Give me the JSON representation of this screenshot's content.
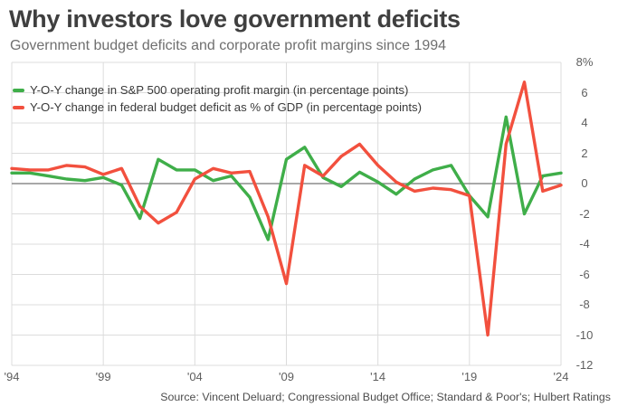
{
  "header": {
    "title": "Why investors love government deficits",
    "subtitle": "Government budget deficits and corporate profit margins since 1994"
  },
  "source": "Source: Vincent Deluard; Congressional Budget Office; Standard & Poor's; Hulbert Ratings",
  "colors": {
    "green_series": "#3fae49",
    "red_series": "#f2503e",
    "grid": "#dcdcdc",
    "zero_line": "#8c8c8c",
    "title_text": "#3f3f3f",
    "subtitle_text": "#6f6f6f",
    "tick_text": "#5f5f5f"
  },
  "chart_data": {
    "type": "line",
    "title": "Why investors love government deficits",
    "subtitle": "Government budget deficits and corporate profit margins since 1994",
    "xlabel": "",
    "ylabel": "",
    "x": [
      1994,
      1995,
      1996,
      1997,
      1998,
      1999,
      2000,
      2001,
      2002,
      2003,
      2004,
      2005,
      2006,
      2007,
      2008,
      2009,
      2010,
      2011,
      2012,
      2013,
      2014,
      2015,
      2016,
      2017,
      2018,
      2019,
      2020,
      2021,
      2022,
      2023,
      2024
    ],
    "series": [
      {
        "name": "Y-O-Y change in S&P 500 operating profit margin (in percentage points)",
        "color": "#3fae49",
        "values": [
          0.7,
          0.7,
          0.5,
          0.3,
          0.2,
          0.4,
          -0.1,
          -2.3,
          1.6,
          0.9,
          0.9,
          0.2,
          0.5,
          -0.9,
          -3.7,
          1.6,
          2.4,
          0.4,
          -0.2,
          0.75,
          0.1,
          -0.7,
          0.3,
          0.9,
          1.2,
          -0.8,
          -2.2,
          4.4,
          -2.0,
          0.5,
          0.7
        ]
      },
      {
        "name": "Y-O-Y change in federal budget deficit as % of GDP (in percentage points)",
        "color": "#f2503e",
        "values": [
          1.0,
          0.9,
          0.9,
          1.2,
          1.1,
          0.6,
          1.0,
          -1.5,
          -2.6,
          -1.9,
          0.3,
          1.0,
          0.7,
          0.8,
          -2.2,
          -6.6,
          1.2,
          0.5,
          1.8,
          2.6,
          1.2,
          0.1,
          -0.5,
          -0.3,
          -0.4,
          -0.8,
          -10.0,
          2.6,
          6.7,
          -0.5,
          -0.1
        ]
      }
    ],
    "xlim": [
      1994,
      2024
    ],
    "ylim": [
      -12,
      8
    ],
    "grid": true,
    "legend_position": "top-left",
    "ytick_labels": [
      "8%",
      "6",
      "4",
      "2",
      "0",
      "-2",
      "-4",
      "-6",
      "-8",
      "-10",
      "-12"
    ],
    "ytick_values": [
      8,
      6,
      4,
      2,
      0,
      -2,
      -4,
      -6,
      -8,
      -10,
      -12
    ],
    "xtick_labels": [
      "'94",
      "'99",
      "'04",
      "'09",
      "'14",
      "'19",
      "'24"
    ],
    "xtick_years": [
      1994,
      1999,
      2004,
      2009,
      2014,
      2019,
      2024
    ]
  }
}
